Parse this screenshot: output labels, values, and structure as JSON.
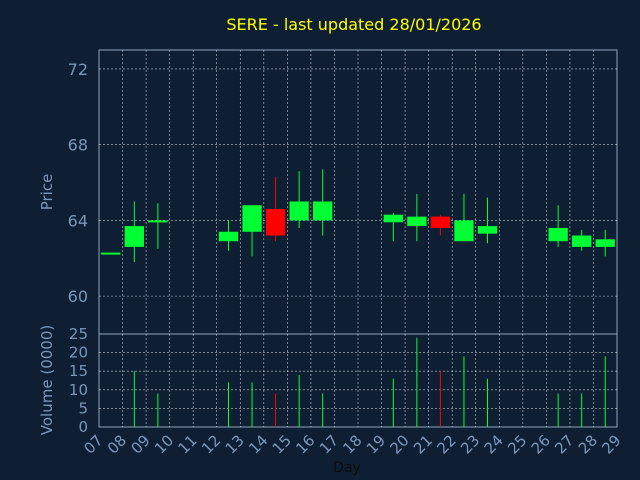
{
  "chart_data": {
    "type": "candlestick",
    "title": "SERE - last updated 28/01/2026",
    "xlabel": "Day",
    "x_ticks": [
      "07",
      "08",
      "09",
      "10",
      "11",
      "12",
      "13",
      "14",
      "15",
      "16",
      "17",
      "18",
      "19",
      "20",
      "21",
      "22",
      "23",
      "24",
      "25",
      "26",
      "27",
      "28",
      "29"
    ],
    "price_panel": {
      "ylabel": "Price",
      "ylim": [
        58,
        73
      ],
      "y_ticks": [
        "60",
        "64",
        "68",
        "72"
      ],
      "grid": true
    },
    "volume_panel": {
      "ylabel": "Volume (0000)",
      "ylim": [
        0,
        25
      ],
      "y_ticks": [
        "0",
        "5",
        "10",
        "15",
        "20",
        "25"
      ],
      "grid": true
    },
    "colors": {
      "up": "#00ff33",
      "down": "#ff0000",
      "title": "#ffff00",
      "axis_text": "#7a97b8",
      "grid": "#ffffff",
      "background": "#0f1f33"
    },
    "candles": [
      {
        "day": "07",
        "open": 62.2,
        "high": 62.3,
        "low": 62.2,
        "close": 62.3,
        "volume": 0
      },
      {
        "day": "08",
        "open": 62.6,
        "high": 65.0,
        "low": 61.8,
        "close": 63.7,
        "volume": 15
      },
      {
        "day": "09",
        "open": 63.9,
        "high": 64.9,
        "low": 62.5,
        "close": 64.0,
        "volume": 9
      },
      {
        "day": "12",
        "open": 62.9,
        "high": 64.0,
        "low": 62.4,
        "close": 63.4,
        "volume": 12
      },
      {
        "day": "13",
        "open": 63.4,
        "high": 64.8,
        "low": 62.1,
        "close": 64.8,
        "volume": 12
      },
      {
        "day": "14",
        "open": 64.6,
        "high": 66.3,
        "low": 62.9,
        "close": 63.2,
        "volume": 9
      },
      {
        "day": "15",
        "open": 64.0,
        "high": 66.6,
        "low": 63.6,
        "close": 65.0,
        "volume": 14
      },
      {
        "day": "16",
        "open": 64.0,
        "high": 66.7,
        "low": 63.2,
        "close": 65.0,
        "volume": 9
      },
      {
        "day": "19",
        "open": 63.9,
        "high": 64.4,
        "low": 62.9,
        "close": 64.3,
        "volume": 13
      },
      {
        "day": "20",
        "open": 63.7,
        "high": 65.4,
        "low": 62.9,
        "close": 64.2,
        "volume": 24
      },
      {
        "day": "21",
        "open": 64.2,
        "high": 64.3,
        "low": 63.2,
        "close": 63.6,
        "volume": 15
      },
      {
        "day": "22",
        "open": 62.9,
        "high": 65.4,
        "low": 62.9,
        "close": 64.0,
        "volume": 19
      },
      {
        "day": "23",
        "open": 63.3,
        "high": 65.2,
        "low": 62.8,
        "close": 63.7,
        "volume": 13
      },
      {
        "day": "26",
        "open": 62.9,
        "high": 64.8,
        "low": 62.6,
        "close": 63.6,
        "volume": 9
      },
      {
        "day": "27",
        "open": 62.6,
        "high": 63.5,
        "low": 62.4,
        "close": 63.2,
        "volume": 9
      },
      {
        "day": "28",
        "open": 62.6,
        "high": 63.5,
        "low": 62.1,
        "close": 63.0,
        "volume": 19
      }
    ]
  }
}
